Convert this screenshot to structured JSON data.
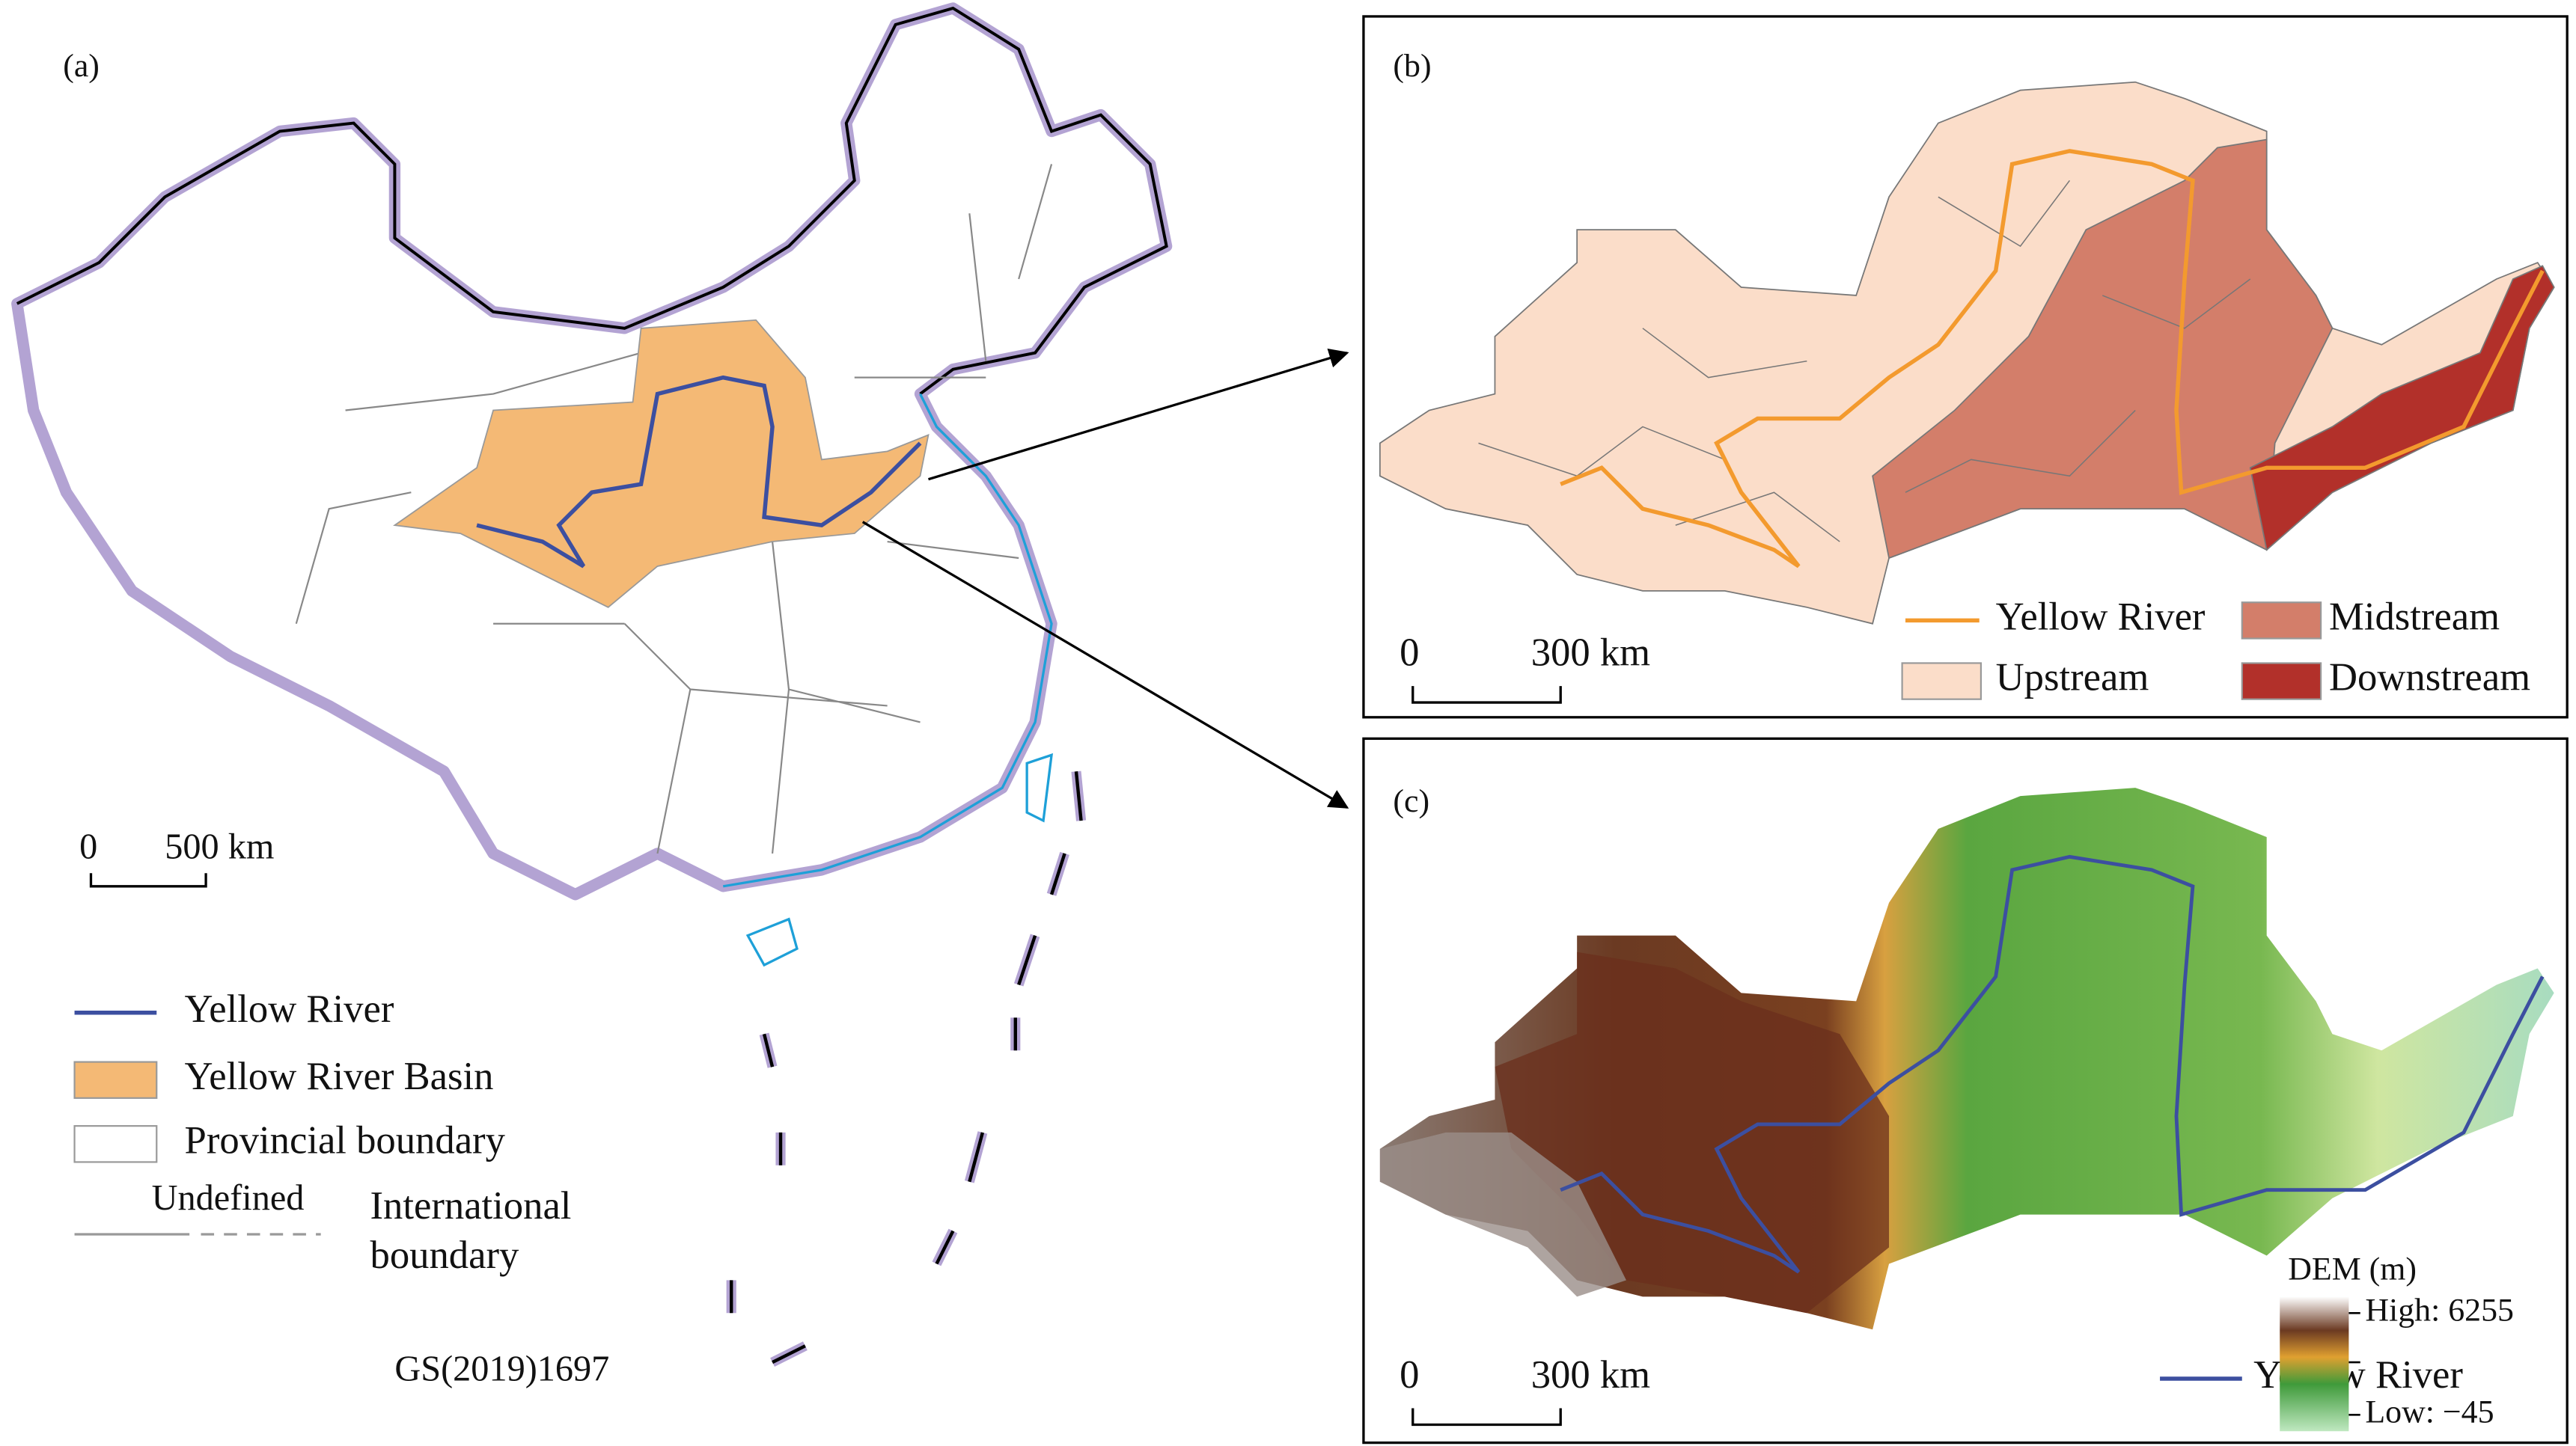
{
  "panels": [
    {
      "label": "(a)",
      "scale_bar": {
        "start": "0",
        "end": "500 km"
      },
      "legend": [
        "Yellow River",
        "Yellow River Basin",
        "Provincial boundary"
      ],
      "boundary_legend": {
        "undefined": "Undefined",
        "international": [
          "International",
          "boundary"
        ]
      },
      "map_number": "GS(2019)1697"
    },
    {
      "label": "(b)",
      "scale_bar": {
        "start": "0",
        "end": "300 km"
      },
      "legend": [
        "Yellow River",
        "Midstream",
        "Upstream",
        "Downstream"
      ]
    },
    {
      "label": "(c)",
      "scale_bar": {
        "start": "0",
        "end": "300 km"
      },
      "legend_title": "DEM (m)",
      "high": "High: 6255",
      "low": "Low: −45",
      "river": "Yellow River"
    }
  ]
}
